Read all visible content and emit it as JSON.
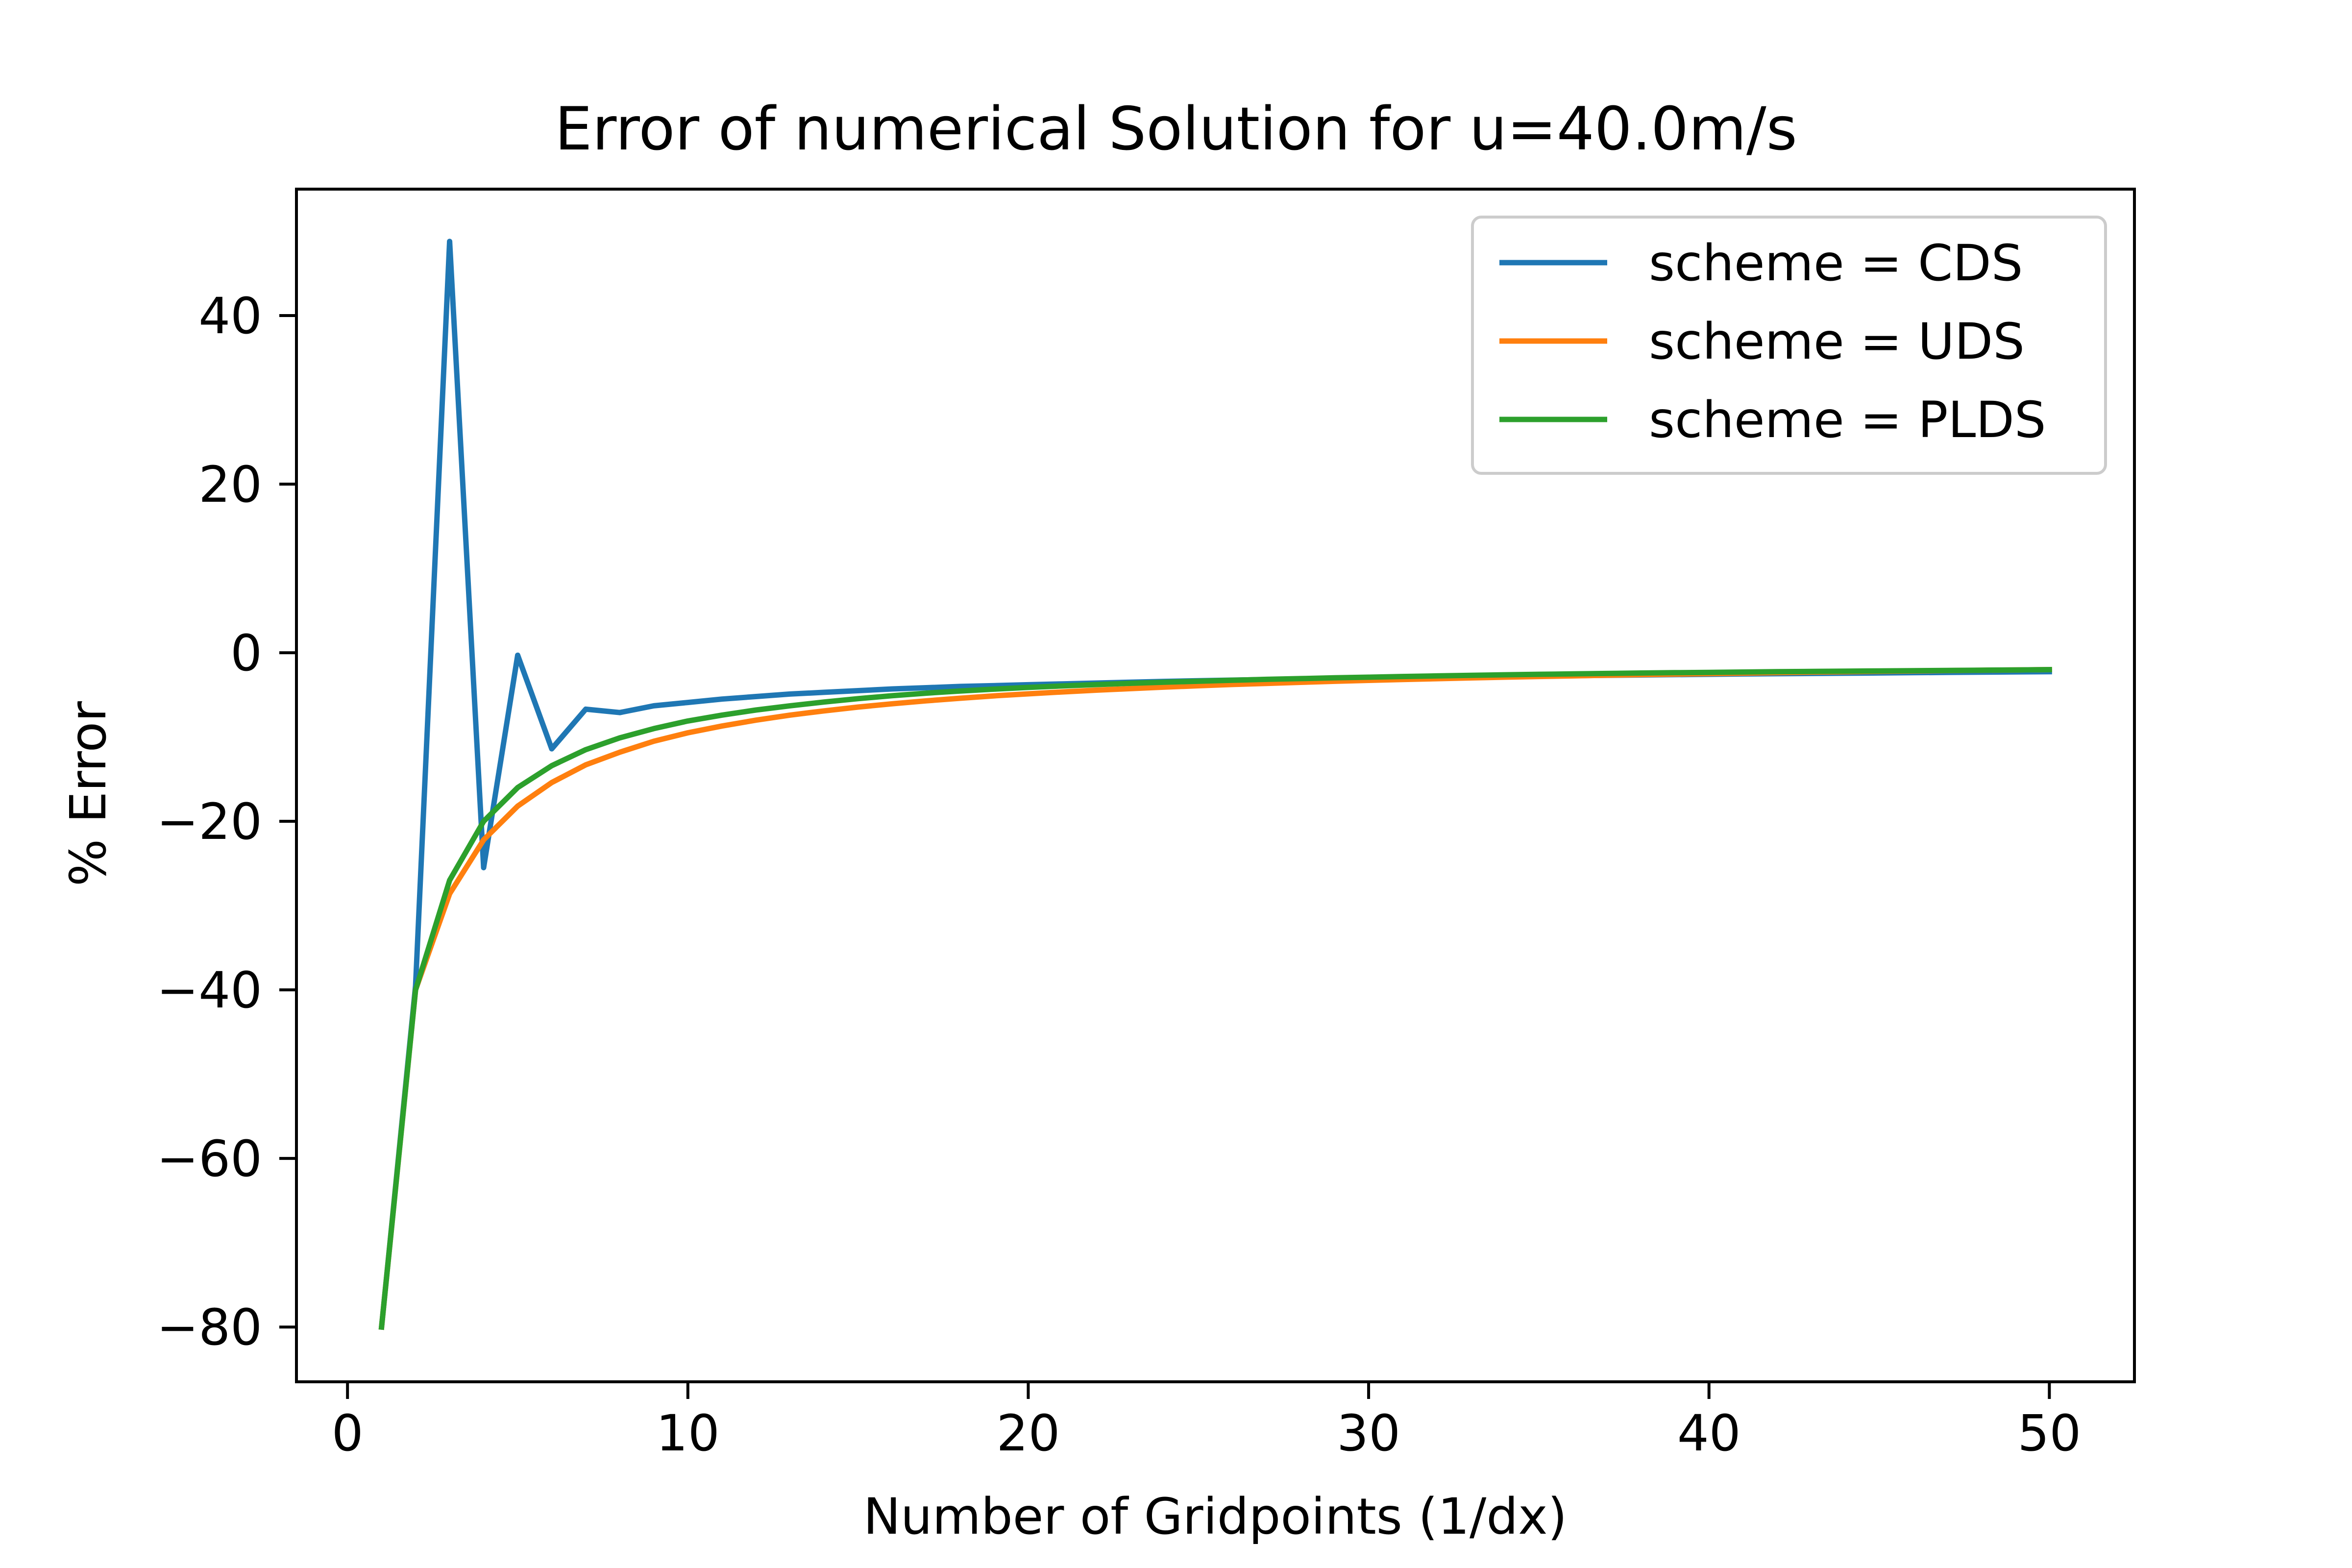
{
  "chart_data": {
    "type": "line",
    "title": "Error of numerical Solution for u=40.0m/s",
    "xlabel": "Number of Gridpoints (1/dx)",
    "ylabel": "% Error",
    "xlim": [
      -1.5,
      52.5
    ],
    "ylim": [
      -86.5,
      55.0
    ],
    "x_ticks": [
      0,
      10,
      20,
      30,
      40,
      50
    ],
    "y_ticks": [
      -80,
      -60,
      -40,
      -20,
      0,
      20,
      40
    ],
    "x_tick_labels": [
      "0",
      "10",
      "20",
      "30",
      "40",
      "50"
    ],
    "y_tick_labels": [
      "−80",
      "−60",
      "−40",
      "−20",
      "0",
      "20",
      "40"
    ],
    "grid": false,
    "legend_position": "top-right",
    "x": [
      1,
      2,
      3,
      4,
      5,
      6,
      7,
      8,
      9,
      10,
      11,
      12,
      13,
      14,
      15,
      16,
      17,
      18,
      19,
      20,
      21,
      22,
      23,
      24,
      25,
      26,
      27,
      28,
      29,
      30,
      31,
      32,
      33,
      34,
      35,
      36,
      37,
      38,
      39,
      40,
      41,
      42,
      43,
      44,
      45,
      46,
      47,
      48,
      49,
      50
    ],
    "series": [
      {
        "name": "scheme = CDS",
        "color": "#1f77b4",
        "values": [
          -80,
          -39.5,
          48.8,
          -25.5,
          -0.3,
          -11.4,
          -6.7,
          -7.1,
          -6.3,
          -5.9,
          -5.5,
          -5.2,
          -4.9,
          -4.7,
          -4.5,
          -4.3,
          -4.15,
          -4.0,
          -3.9,
          -3.8,
          -3.7,
          -3.6,
          -3.5,
          -3.4,
          -3.32,
          -3.25,
          -3.18,
          -3.12,
          -3.06,
          -3.0,
          -2.95,
          -2.9,
          -2.85,
          -2.8,
          -2.76,
          -2.72,
          -2.68,
          -2.64,
          -2.6,
          -2.56,
          -2.52,
          -2.49,
          -2.46,
          -2.43,
          -2.4,
          -2.37,
          -2.34,
          -2.31,
          -2.28,
          -2.25
        ]
      },
      {
        "name": "scheme = UDS",
        "color": "#ff7f0e",
        "values": [
          -80,
          -40,
          -28.6,
          -22.2,
          -18.2,
          -15.4,
          -13.3,
          -11.8,
          -10.5,
          -9.5,
          -8.7,
          -8.0,
          -7.4,
          -6.9,
          -6.45,
          -6.06,
          -5.71,
          -5.4,
          -5.12,
          -4.88,
          -4.65,
          -4.44,
          -4.26,
          -4.08,
          -3.92,
          -3.77,
          -3.64,
          -3.51,
          -3.39,
          -3.28,
          -3.18,
          -3.08,
          -2.99,
          -2.9,
          -2.82,
          -2.75,
          -2.67,
          -2.6,
          -2.54,
          -2.48,
          -2.42,
          -2.36,
          -2.31,
          -2.26,
          -2.21,
          -2.17,
          -2.12,
          -2.08,
          -2.04,
          -2.0
        ]
      },
      {
        "name": "scheme = PLDS",
        "color": "#2ca02c",
        "values": [
          -80,
          -40,
          -27,
          -20,
          -16,
          -13.4,
          -11.5,
          -10.1,
          -9.0,
          -8.1,
          -7.4,
          -6.8,
          -6.3,
          -5.85,
          -5.45,
          -5.1,
          -4.8,
          -4.55,
          -4.32,
          -4.12,
          -3.94,
          -3.78,
          -3.63,
          -3.5,
          -3.38,
          -3.27,
          -3.16,
          -3.07,
          -2.98,
          -2.9,
          -2.82,
          -2.75,
          -2.68,
          -2.62,
          -2.56,
          -2.51,
          -2.46,
          -2.41,
          -2.37,
          -2.33,
          -2.29,
          -2.25,
          -2.22,
          -2.19,
          -2.16,
          -2.13,
          -2.1,
          -2.07,
          -2.04,
          -2.0
        ]
      }
    ]
  }
}
